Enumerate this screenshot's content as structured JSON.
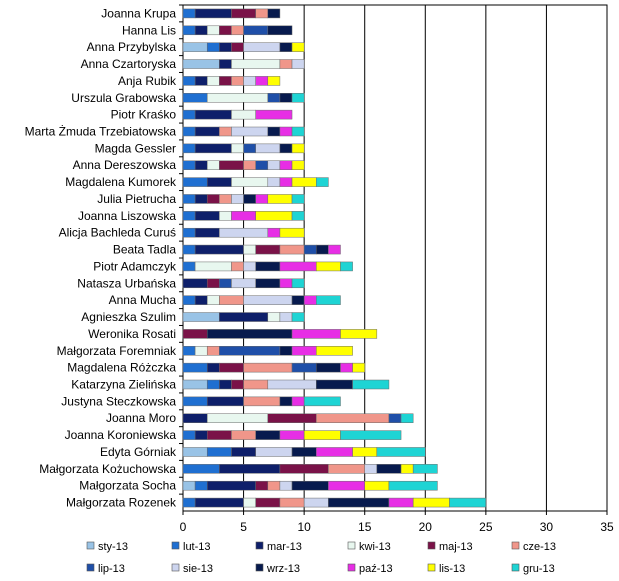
{
  "chart_data": {
    "type": "stacked-bar-horizontal",
    "title": "",
    "xlabel": "",
    "ylabel": "",
    "xlim": [
      0,
      35
    ],
    "xticks": [
      "0",
      "5",
      "10",
      "15",
      "20",
      "25",
      "30",
      "35"
    ],
    "grid": true,
    "legend_position": "bottom",
    "categories": [
      "Joanna Krupa",
      "Hanna Lis",
      "Anna Przybylska",
      "Anna Czartoryska",
      "Anja Rubik",
      "Urszula Grabowska",
      "Piotr Kraśko",
      "Marta Żmuda Trzebiatowska",
      "Magda Gessler",
      "Anna Dereszowska",
      "Magdalena Kumorek",
      "Julia Pietrucha",
      "Joanna Liszowska",
      "Alicja Bachleda Curuś",
      "Beata Tadla",
      "Piotr Adamczyk",
      "Natasza Urbańska",
      "Anna Mucha",
      "Agnieszka Szulim",
      "Weronika Rosati",
      "Małgorzata Foremniak",
      "Magdalena Różczka",
      "Katarzyna Zielińska",
      "Justyna Steczkowska",
      "Joanna Moro",
      "Joanna Koroniewska",
      "Edyta Górniak",
      "Małgorzata Kożuchowska",
      "Małgorzata Socha",
      "Małgorzata Rozenek"
    ],
    "series": [
      {
        "name": "sty-13",
        "color": "#99c3e6",
        "values": [
          0,
          0,
          2,
          3,
          0,
          0,
          0,
          0,
          0,
          0,
          0,
          0,
          0,
          0,
          0,
          0,
          0,
          0,
          3,
          0,
          0,
          0,
          2,
          0,
          0,
          0,
          2,
          0,
          1,
          0
        ]
      },
      {
        "name": "lut-13",
        "color": "#1f6fd1",
        "values": [
          1,
          1,
          1,
          0,
          1,
          2,
          1,
          1,
          1,
          1,
          2,
          1,
          1,
          1,
          1,
          1,
          0,
          1,
          0,
          0,
          1,
          2,
          1,
          2,
          0,
          1,
          2,
          3,
          1,
          1
        ]
      },
      {
        "name": "mar-13",
        "color": "#0e1f6a",
        "values": [
          3,
          1,
          1,
          1,
          1,
          0,
          3,
          2,
          3,
          1,
          2,
          1,
          2,
          2,
          4,
          0,
          2,
          1,
          4,
          0,
          0,
          1,
          1,
          3,
          2,
          1,
          2,
          5,
          4,
          4
        ]
      },
      {
        "name": "kwi-13",
        "color": "#e8f7ef",
        "values": [
          0,
          1,
          0,
          4,
          1,
          5,
          2,
          0,
          1,
          1,
          3,
          0,
          1,
          0,
          1,
          3,
          0,
          1,
          1,
          0,
          1,
          0,
          0,
          0,
          5,
          0,
          0,
          0,
          0,
          1
        ]
      },
      {
        "name": "maj-13",
        "color": "#7a1248",
        "values": [
          2,
          1,
          1,
          0,
          1,
          0,
          0,
          0,
          0,
          2,
          0,
          1,
          0,
          0,
          2,
          0,
          1,
          0,
          0,
          2,
          0,
          2,
          1,
          0,
          4,
          2,
          0,
          4,
          1,
          2
        ]
      },
      {
        "name": "cze-13",
        "color": "#f0968a",
        "values": [
          1,
          1,
          0,
          1,
          1,
          0,
          0,
          1,
          0,
          1,
          0,
          1,
          0,
          0,
          2,
          1,
          0,
          2,
          0,
          0,
          1,
          4,
          2,
          3,
          6,
          2,
          0,
          3,
          1,
          2
        ]
      },
      {
        "name": "lip-13",
        "color": "#1f4fa8",
        "values": [
          0,
          2,
          0,
          0,
          0,
          1,
          0,
          0,
          1,
          1,
          0,
          0,
          0,
          0,
          1,
          0,
          1,
          0,
          0,
          0,
          5,
          2,
          0,
          0,
          1,
          0,
          0,
          0,
          0,
          0
        ]
      },
      {
        "name": "sie-13",
        "color": "#cdd5ef",
        "values": [
          0,
          0,
          3,
          1,
          1,
          0,
          0,
          3,
          2,
          1,
          1,
          1,
          0,
          4,
          0,
          1,
          2,
          4,
          1,
          0,
          0,
          0,
          4,
          0,
          0,
          0,
          3,
          1,
          1,
          2
        ]
      },
      {
        "name": "wrz-13",
        "color": "#071a4e",
        "values": [
          1,
          2,
          1,
          0,
          0,
          1,
          0,
          1,
          1,
          0,
          0,
          1,
          0,
          0,
          1,
          2,
          2,
          1,
          0,
          7,
          1,
          2,
          3,
          1,
          0,
          2,
          2,
          2,
          3,
          5
        ]
      },
      {
        "name": "paź-13",
        "color": "#e72ee5",
        "values": [
          0,
          0,
          0,
          0,
          1,
          0,
          3,
          1,
          0,
          1,
          1,
          1,
          2,
          1,
          1,
          3,
          1,
          1,
          0,
          4,
          2,
          1,
          0,
          1,
          0,
          2,
          3,
          0,
          3,
          2
        ]
      },
      {
        "name": "lis-13",
        "color": "#ffff00",
        "values": [
          0,
          0,
          1,
          0,
          1,
          0,
          0,
          0,
          1,
          1,
          2,
          2,
          3,
          2,
          0,
          2,
          0,
          0,
          0,
          3,
          3,
          1,
          0,
          0,
          0,
          3,
          2,
          1,
          2,
          3
        ]
      },
      {
        "name": "gru-13",
        "color": "#1ed4d4",
        "values": [
          0,
          0,
          0,
          0,
          0,
          1,
          0,
          1,
          0,
          0,
          1,
          1,
          1,
          0,
          0,
          1,
          1,
          2,
          1,
          0,
          0,
          0,
          3,
          3,
          1,
          5,
          4,
          2,
          4,
          3
        ]
      }
    ]
  }
}
